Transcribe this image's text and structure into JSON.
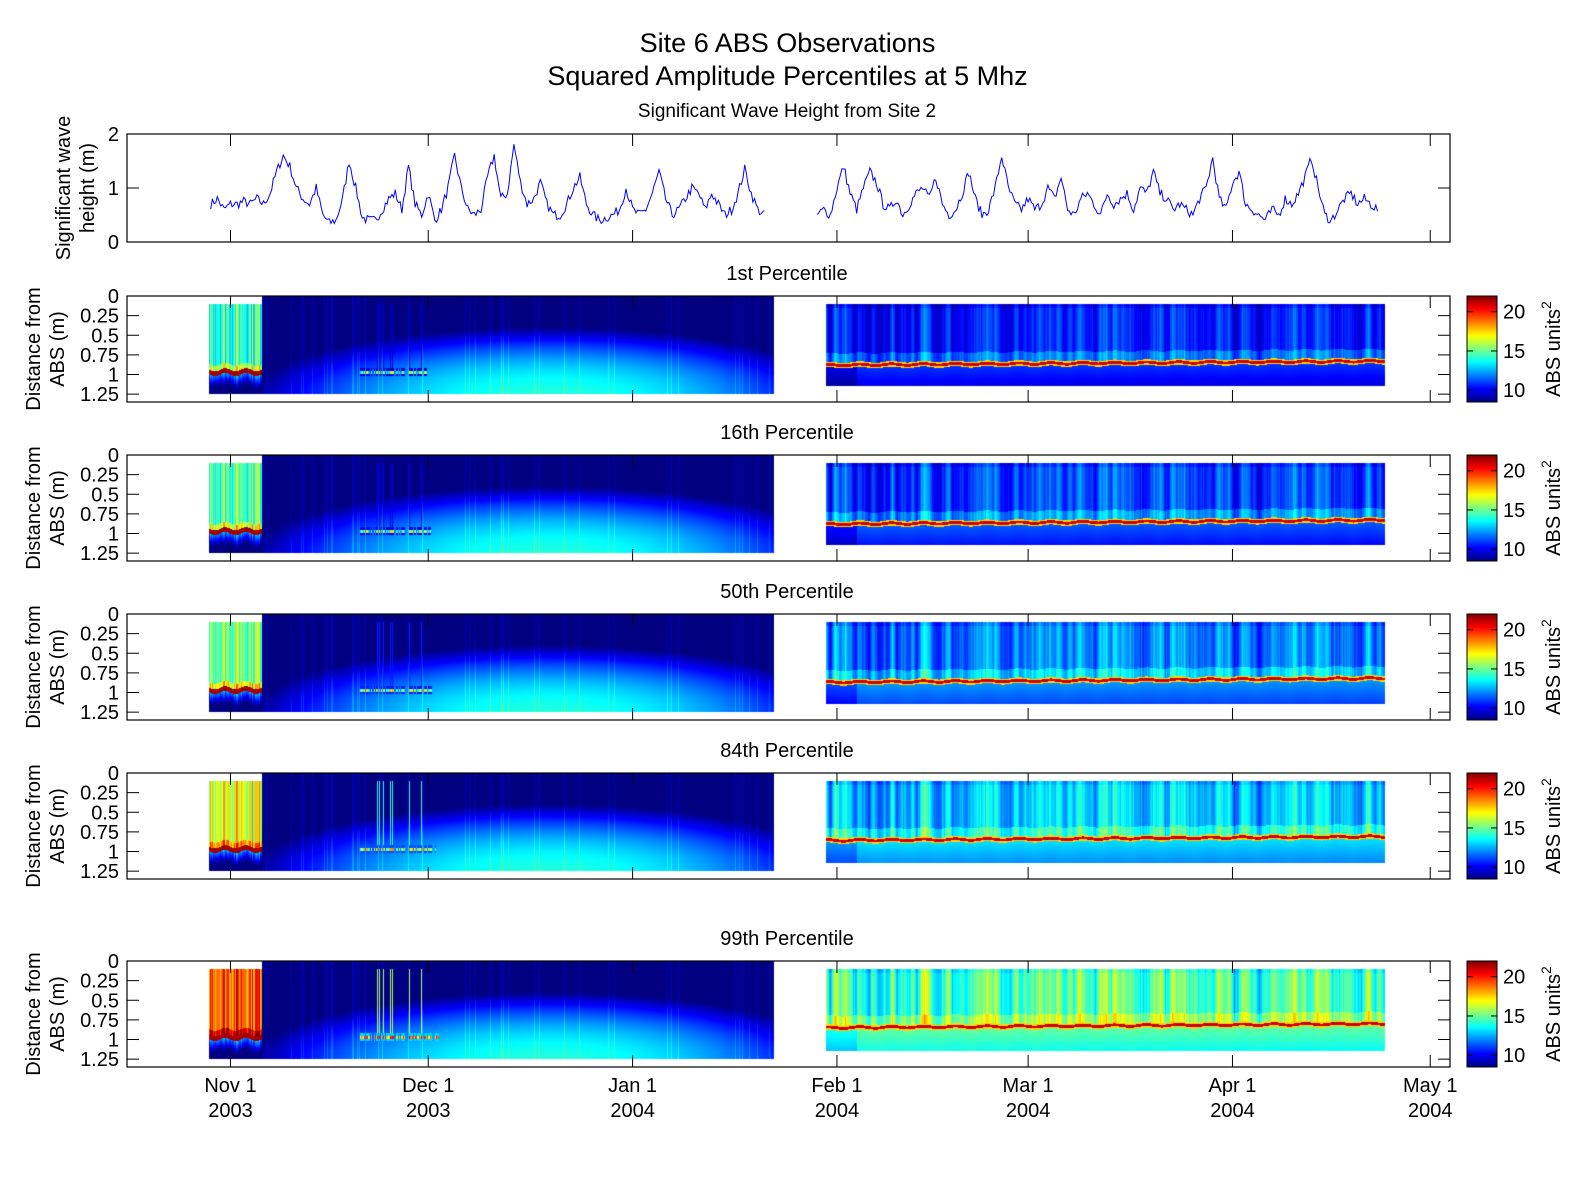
{
  "title_line1": "Site 6 ABS Observations",
  "title_line2": "Squared Amplitude Percentiles at 5 Mhz",
  "chart_data": [
    {
      "type": "line",
      "title": "Significant Wave Height from Site 2",
      "ylabel": [
        "Significant wave",
        "height (m)"
      ],
      "xlabel": "",
      "x_units": "days since Nov 1 2003",
      "xlim": [
        -15.7,
        185
      ],
      "ylim": [
        0,
        2
      ],
      "yticks": [
        0,
        1,
        2
      ],
      "color": "#0000ff",
      "series": [
        {
          "name": "segment1",
          "x_start": -3,
          "values": [
            0.7,
            0.8,
            0.6,
            0.7,
            0.7,
            0.75,
            0.7,
            0.8,
            0.7,
            0.9,
            1.3,
            1.6,
            1.4,
            1.0,
            0.8,
            0.7,
            1.0,
            0.5,
            0.35,
            0.4,
            0.8,
            1.5,
            1.0,
            0.45,
            0.4,
            0.4,
            0.6,
            0.8,
            0.9,
            0.6,
            1.4,
            0.7,
            0.5,
            0.9,
            0.4,
            0.6,
            1.0,
            1.6,
            1.0,
            0.6,
            0.5,
            0.6,
            1.2,
            1.6,
            0.8,
            0.9,
            1.8,
            1.1,
            0.7,
            0.8,
            1.1,
            0.7,
            0.5,
            0.5,
            0.7,
            1.0,
            1.2,
            0.7,
            0.5,
            0.4,
            0.45,
            0.5,
            0.6,
            1.0,
            0.6,
            0.5,
            0.6,
            0.9,
            1.3,
            0.8,
            0.5,
            0.6,
            0.8,
            1.0,
            0.9,
            0.6,
            0.9,
            0.7,
            0.5,
            0.6,
            0.9,
            1.35,
            0.9,
            0.6,
            0.5
          ]
        },
        {
          "name": "segment2",
          "x_start": 89,
          "values": [
            0.5,
            0.6,
            0.5,
            1.0,
            1.4,
            0.9,
            0.6,
            1.0,
            1.3,
            1.1,
            0.7,
            0.6,
            0.8,
            0.5,
            0.7,
            0.9,
            1.0,
            0.8,
            1.2,
            0.7,
            0.5,
            0.6,
            0.9,
            1.3,
            0.8,
            0.5,
            0.6,
            1.0,
            1.6,
            1.0,
            0.7,
            0.6,
            0.8,
            0.6,
            0.7,
            1.0,
            0.8,
            1.2,
            0.6,
            0.5,
            0.8,
            0.9,
            0.7,
            0.5,
            0.9,
            0.7,
            0.8,
            0.9,
            0.6,
            1.0,
            0.9,
            1.3,
            0.9,
            0.8,
            0.6,
            0.7,
            0.6,
            0.5,
            0.8,
            1.0,
            1.55,
            0.8,
            0.6,
            1.1,
            1.3,
            0.7,
            0.6,
            0.5,
            0.4,
            0.6,
            0.5,
            0.8,
            0.7,
            0.9,
            1.2,
            1.55,
            1.0,
            0.5,
            0.4,
            0.6,
            0.8,
            0.9,
            0.7,
            0.8,
            0.7,
            0.6
          ]
        }
      ]
    },
    {
      "type": "heatmap",
      "panels": [
        {
          "title": "1st Percentile",
          "seg1_level": 14.5,
          "seg2_level": 10.5,
          "seg2_var": 2.5,
          "dec_level": 9.5,
          "seg1_bed_m": 0.97,
          "seg2_bed_m": 0.88
        },
        {
          "title": "16th Percentile",
          "seg1_level": 15,
          "seg2_level": 11,
          "seg2_var": 2.8,
          "dec_level": 9.8,
          "seg1_bed_m": 0.97,
          "seg2_bed_m": 0.88
        },
        {
          "title": "50th Percentile",
          "seg1_level": 15.5,
          "seg2_level": 11.8,
          "seg2_var": 3.0,
          "dec_level": 10.5,
          "seg1_bed_m": 0.97,
          "seg2_bed_m": 0.87
        },
        {
          "title": "84th Percentile",
          "seg1_level": 17,
          "seg2_level": 12.8,
          "seg2_var": 3.2,
          "dec_level": 11.2,
          "seg1_bed_m": 0.97,
          "seg2_bed_m": 0.86
        },
        {
          "title": "99th Percentile",
          "seg1_level": 19.5,
          "seg2_level": 14.5,
          "seg2_var": 3.8,
          "dec_level": 13,
          "seg1_bed_m": 0.97,
          "seg2_bed_m": 0.85
        }
      ],
      "ylabel": [
        "Distance from",
        "ABS (m)"
      ],
      "ylim": [
        0,
        1.35
      ],
      "yticks": [
        0,
        0.25,
        0.5,
        0.75,
        1,
        1.25
      ],
      "ytick_labels": [
        "0",
        "0.25",
        "0.5",
        "0.75",
        "1",
        "1.25"
      ],
      "xlim": [
        -15.7,
        185
      ],
      "data_ranges_days": [
        [
          -3.3,
          4.8
        ],
        [
          4.8,
          82.4
        ],
        [
          90.3,
          175.2
        ]
      ],
      "colorbar": {
        "label": "ABS units",
        "label_sup": "2",
        "clim": [
          8.5,
          22
        ],
        "ticks": [
          10,
          15,
          20
        ],
        "colormap": "jet"
      }
    }
  ],
  "x_axis": {
    "ticks": [
      0,
      30,
      61,
      92,
      121,
      152,
      182
    ],
    "labels": [
      [
        "Nov 1",
        "2003"
      ],
      [
        "Dec 1",
        "2003"
      ],
      [
        "Jan 1",
        "2004"
      ],
      [
        "Feb 1",
        "2004"
      ],
      [
        "Mar 1",
        "2004"
      ],
      [
        "Apr 1",
        "2004"
      ],
      [
        "May 1",
        "2004"
      ]
    ]
  }
}
